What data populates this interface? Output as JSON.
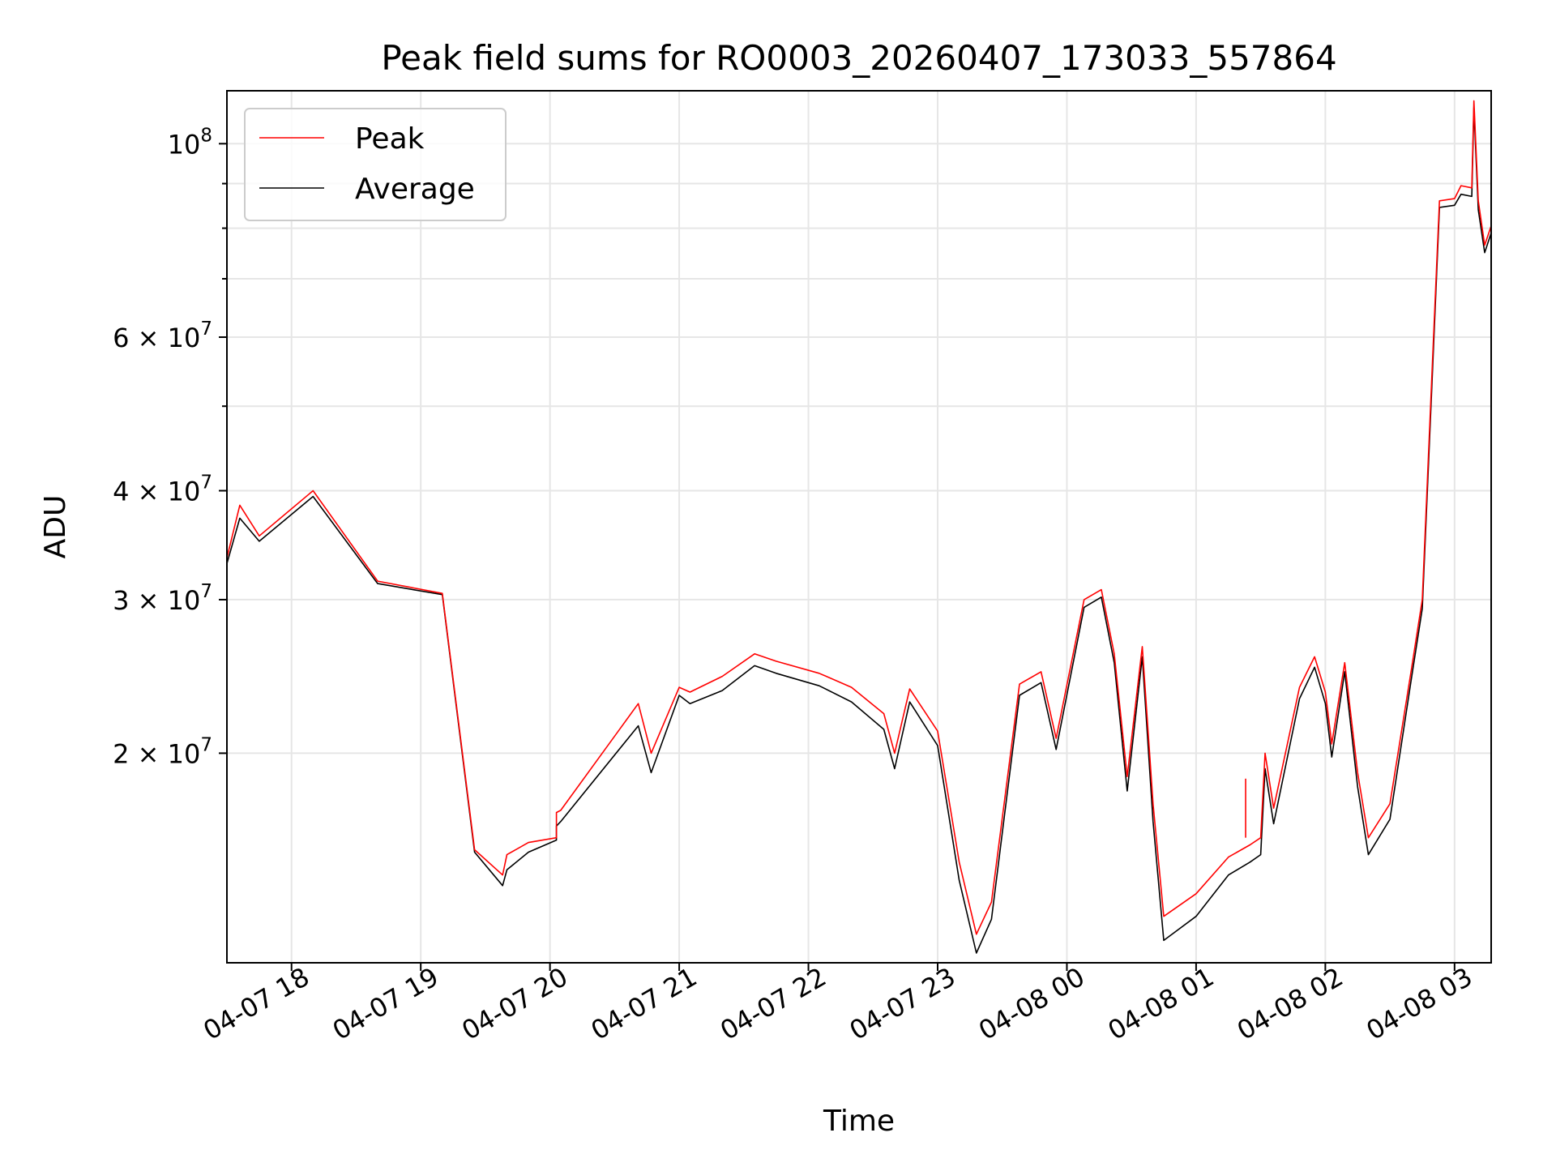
{
  "chart_data": {
    "type": "line",
    "title": "Peak field sums for RO0003_20260407_173033_557864",
    "xlabel": "Time",
    "ylabel": "ADU",
    "yscale": "log",
    "ylim": [
      11500000,
      115000000
    ],
    "xlim": [
      "2026-04-07 17:30",
      "2026-04-08 03:17"
    ],
    "grid": true,
    "legend_position": "upper left",
    "x_ticks": [
      {
        "value": "2026-04-07 18:00",
        "label": "04-07 18"
      },
      {
        "value": "2026-04-07 19:00",
        "label": "04-07 19"
      },
      {
        "value": "2026-04-07 20:00",
        "label": "04-07 20"
      },
      {
        "value": "2026-04-07 21:00",
        "label": "04-07 21"
      },
      {
        "value": "2026-04-07 22:00",
        "label": "04-07 22"
      },
      {
        "value": "2026-04-07 23:00",
        "label": "04-07 23"
      },
      {
        "value": "2026-04-08 00:00",
        "label": "04-08 00"
      },
      {
        "value": "2026-04-08 01:00",
        "label": "04-08 01"
      },
      {
        "value": "2026-04-08 02:00",
        "label": "04-08 02"
      },
      {
        "value": "2026-04-08 03:00",
        "label": "04-08 03"
      }
    ],
    "y_ticks": [
      {
        "value": 20000000,
        "base": "2 × 10",
        "exp": "7"
      },
      {
        "value": 30000000,
        "base": "3 × 10",
        "exp": "7"
      },
      {
        "value": 40000000,
        "base": "4 × 10",
        "exp": "7"
      },
      {
        "value": 60000000,
        "base": "6 × 10",
        "exp": "7"
      },
      {
        "value": 100000000,
        "base": "10",
        "exp": "8"
      }
    ],
    "y_minor_ticks": [
      50000000,
      70000000,
      80000000,
      90000000
    ],
    "series": [
      {
        "name": "Peak",
        "color": "#ff0000",
        "points": [
          [
            "2026-04-07 17:30",
            33500000
          ],
          [
            "2026-04-07 17:36",
            38500000
          ],
          [
            "2026-04-07 17:45",
            35500000
          ],
          [
            "2026-04-07 18:10",
            40000000
          ],
          [
            "2026-04-07 18:40",
            31500000
          ],
          [
            "2026-04-07 19:10",
            30500000
          ],
          [
            "2026-04-07 19:25",
            15500000
          ],
          [
            "2026-04-07 19:38",
            14500000
          ],
          [
            "2026-04-07 19:40",
            15300000
          ],
          [
            "2026-04-07 19:50",
            15800000
          ],
          [
            "2026-04-07 20:03",
            16000000
          ],
          [
            "2026-04-07 20:03",
            17100000
          ],
          [
            "2026-04-07 20:05",
            17200000
          ],
          [
            "2026-04-07 20:41",
            22800000
          ],
          [
            "2026-04-07 20:47",
            20000000
          ],
          [
            "2026-04-07 21:00",
            23800000
          ],
          [
            "2026-04-07 21:05",
            23500000
          ],
          [
            "2026-04-07 21:20",
            24500000
          ],
          [
            "2026-04-07 21:35",
            26000000
          ],
          [
            "2026-04-07 21:45",
            25500000
          ],
          [
            "2026-04-07 22:05",
            24700000
          ],
          [
            "2026-04-07 22:20",
            23800000
          ],
          [
            "2026-04-07 22:35",
            22200000
          ],
          [
            "2026-04-07 22:40",
            20000000
          ],
          [
            "2026-04-07 22:47",
            23700000
          ],
          [
            "2026-04-07 23:00",
            21200000
          ],
          [
            "2026-04-07 23:10",
            15000000
          ],
          [
            "2026-04-07 23:18",
            12400000
          ],
          [
            "2026-04-07 23:25",
            13500000
          ],
          [
            "2026-04-07 23:38",
            24000000
          ],
          [
            "2026-04-07 23:48",
            24800000
          ],
          [
            "2026-04-07 23:55",
            20800000
          ],
          [
            "2026-04-08 00:08",
            30000000
          ],
          [
            "2026-04-08 00:16",
            30800000
          ],
          [
            "2026-04-08 00:22",
            26000000
          ],
          [
            "2026-04-08 00:28",
            18800000
          ],
          [
            "2026-04-08 00:35",
            26500000
          ],
          [
            "2026-04-08 00:40",
            17500000
          ],
          [
            "2026-04-08 00:45",
            13000000
          ],
          [
            "2026-04-08 01:00",
            13800000
          ],
          [
            "2026-04-08 01:15",
            15200000
          ],
          [
            "2026-04-08 01:25",
            15700000
          ],
          [
            "2026-04-08 01:30",
            16000000
          ],
          [
            "2026-04-08 01:32",
            20000000
          ],
          [
            "2026-04-08 01:36",
            17300000
          ],
          [
            "2026-04-08 01:48",
            23800000
          ],
          [
            "2026-04-08 01:55",
            25800000
          ],
          [
            "2026-04-08 02:00",
            23500000
          ],
          [
            "2026-04-08 02:03",
            20500000
          ],
          [
            "2026-04-08 02:09",
            25400000
          ],
          [
            "2026-04-08 02:15",
            19000000
          ],
          [
            "2026-04-08 02:20",
            16000000
          ],
          [
            "2026-04-08 02:30",
            17500000
          ],
          [
            "2026-04-08 02:40",
            25000000
          ],
          [
            "2026-04-08 02:45",
            30000000
          ],
          [
            "2026-04-08 02:50",
            58000000
          ],
          [
            "2026-04-08 02:53",
            86000000
          ],
          [
            "2026-04-08 03:00",
            86500000
          ],
          [
            "2026-04-08 03:03",
            89500000
          ],
          [
            "2026-04-08 03:08",
            89000000
          ],
          [
            "2026-04-08 03:09",
            112000000
          ],
          [
            "2026-04-08 03:11",
            86000000
          ],
          [
            "2026-04-08 03:14",
            76500000
          ],
          [
            "2026-04-08 03:17",
            80500000
          ]
        ]
      },
      {
        "name": "Average",
        "color": "#000000",
        "points": [
          [
            "2026-04-07 17:30",
            33000000
          ],
          [
            "2026-04-07 17:36",
            37200000
          ],
          [
            "2026-04-07 17:45",
            35000000
          ],
          [
            "2026-04-07 18:10",
            39400000
          ],
          [
            "2026-04-07 18:40",
            31300000
          ],
          [
            "2026-04-07 19:10",
            30400000
          ],
          [
            "2026-04-07 19:25",
            15400000
          ],
          [
            "2026-04-07 19:38",
            14100000
          ],
          [
            "2026-04-07 19:40",
            14700000
          ],
          [
            "2026-04-07 19:50",
            15400000
          ],
          [
            "2026-04-07 20:03",
            15900000
          ],
          [
            "2026-04-07 20:03",
            16500000
          ],
          [
            "2026-04-07 20:05",
            16700000
          ],
          [
            "2026-04-07 20:41",
            21500000
          ],
          [
            "2026-04-07 20:47",
            19000000
          ],
          [
            "2026-04-07 21:00",
            23300000
          ],
          [
            "2026-04-07 21:05",
            22800000
          ],
          [
            "2026-04-07 21:20",
            23600000
          ],
          [
            "2026-04-07 21:35",
            25200000
          ],
          [
            "2026-04-07 21:45",
            24700000
          ],
          [
            "2026-04-07 22:05",
            23900000
          ],
          [
            "2026-04-07 22:20",
            22900000
          ],
          [
            "2026-04-07 22:35",
            21300000
          ],
          [
            "2026-04-07 22:40",
            19200000
          ],
          [
            "2026-04-07 22:47",
            22900000
          ],
          [
            "2026-04-07 23:00",
            20400000
          ],
          [
            "2026-04-07 23:10",
            14300000
          ],
          [
            "2026-04-07 23:18",
            11800000
          ],
          [
            "2026-04-07 23:25",
            12900000
          ],
          [
            "2026-04-07 23:38",
            23300000
          ],
          [
            "2026-04-07 23:48",
            24100000
          ],
          [
            "2026-04-07 23:55",
            20200000
          ],
          [
            "2026-04-08 00:08",
            29400000
          ],
          [
            "2026-04-08 00:16",
            30200000
          ],
          [
            "2026-04-08 00:22",
            25400000
          ],
          [
            "2026-04-08 00:28",
            18100000
          ],
          [
            "2026-04-08 00:35",
            25800000
          ],
          [
            "2026-04-08 00:40",
            16700000
          ],
          [
            "2026-04-08 00:45",
            12200000
          ],
          [
            "2026-04-08 01:00",
            13000000
          ],
          [
            "2026-04-08 01:15",
            14500000
          ],
          [
            "2026-04-08 01:25",
            15000000
          ],
          [
            "2026-04-08 01:30",
            15300000
          ],
          [
            "2026-04-08 01:32",
            19200000
          ],
          [
            "2026-04-08 01:36",
            16600000
          ],
          [
            "2026-04-08 01:48",
            23100000
          ],
          [
            "2026-04-08 01:55",
            25100000
          ],
          [
            "2026-04-08 02:00",
            22800000
          ],
          [
            "2026-04-08 02:03",
            19800000
          ],
          [
            "2026-04-08 02:09",
            24800000
          ],
          [
            "2026-04-08 02:15",
            18300000
          ],
          [
            "2026-04-08 02:20",
            15300000
          ],
          [
            "2026-04-08 02:30",
            16800000
          ],
          [
            "2026-04-08 02:40",
            24400000
          ],
          [
            "2026-04-08 02:45",
            29300000
          ],
          [
            "2026-04-08 02:50",
            56500000
          ],
          [
            "2026-04-08 02:53",
            84500000
          ],
          [
            "2026-04-08 03:00",
            85000000
          ],
          [
            "2026-04-08 03:03",
            87500000
          ],
          [
            "2026-04-08 03:08",
            87000000
          ],
          [
            "2026-04-08 03:09",
            110000000
          ],
          [
            "2026-04-08 03:11",
            84000000
          ],
          [
            "2026-04-08 03:14",
            75000000
          ],
          [
            "2026-04-08 03:17",
            79000000
          ]
        ]
      }
    ],
    "annotations": [
      {
        "type": "spike",
        "series": "Peak",
        "x": "2026-04-08 01:23",
        "from": 16000000,
        "to": 18700000
      }
    ]
  }
}
